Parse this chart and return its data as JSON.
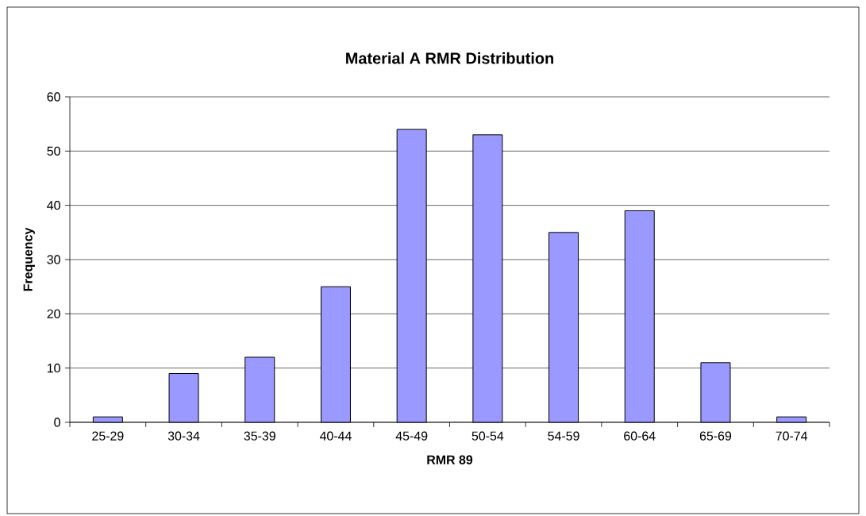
{
  "chart_data": {
    "type": "bar",
    "title": "Material A RMR Distribution",
    "xlabel": "RMR 89",
    "ylabel": "Frequency",
    "categories": [
      "25-29",
      "30-34",
      "35-39",
      "40-44",
      "45-49",
      "50-54",
      "54-59",
      "60-64",
      "65-69",
      "70-74"
    ],
    "values": [
      1,
      9,
      12,
      25,
      54,
      53,
      35,
      39,
      11,
      1
    ],
    "color": "#9999ff",
    "ylim": [
      0,
      60
    ],
    "yticks": [
      0,
      10,
      20,
      30,
      40,
      50,
      60
    ],
    "grid": "y"
  }
}
